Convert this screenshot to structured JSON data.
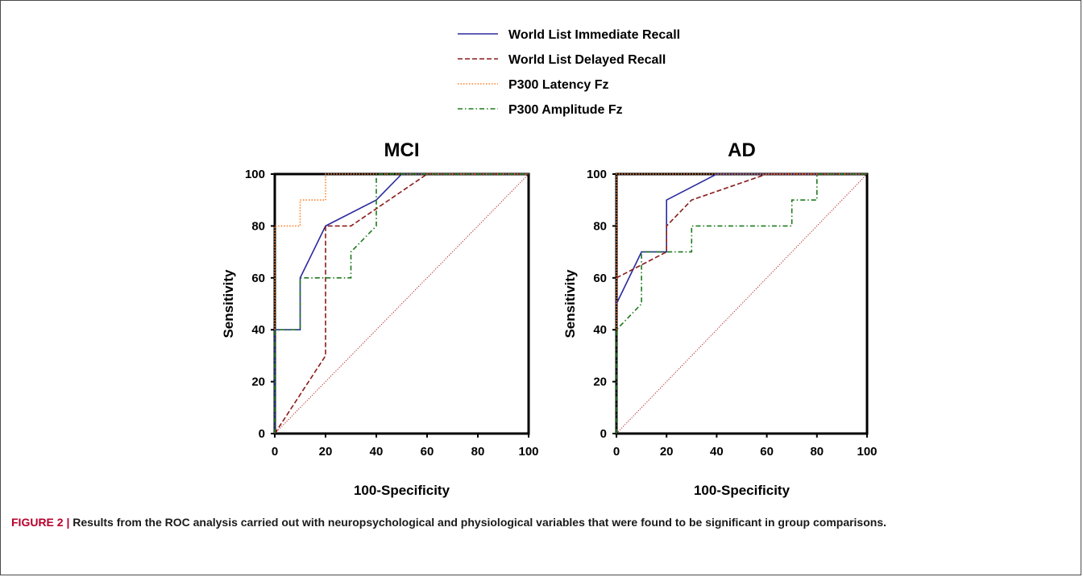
{
  "caption": {
    "label": "FIGURE 2 |",
    "text": "Results from the ROC analysis carried out with neuropsychological and physiological variables that were found to be significant in group comparisons."
  },
  "legend": [
    {
      "name": "World List Immediate Recall",
      "color": "#2a2a9e",
      "dash": "solid"
    },
    {
      "name": "World List Delayed Recall",
      "color": "#8b1a1a",
      "dash": "dashed"
    },
    {
      "name": "P300 Latency Fz",
      "color": "#ff7f27",
      "dash": "dotted"
    },
    {
      "name": "P300 Amplitude Fz",
      "color": "#1e7a1e",
      "dash": "dash-dot"
    }
  ],
  "chart_data": [
    {
      "type": "line",
      "title": "MCI",
      "xlabel": "100-Specificity",
      "ylabel": "Sensitivity",
      "xlim": [
        0,
        100
      ],
      "ylim": [
        0,
        100
      ],
      "xticks": [
        "0",
        "20",
        "40",
        "60",
        "80",
        "100"
      ],
      "yticks": [
        "0",
        "20",
        "40",
        "60",
        "80",
        "100"
      ],
      "reference_line": {
        "x": [
          0,
          100
        ],
        "y": [
          0,
          100
        ],
        "color": "#b22222"
      },
      "series": [
        {
          "name": "World List Immediate Recall",
          "x": [
            0,
            0,
            10,
            10,
            20,
            40,
            50,
            100
          ],
          "y": [
            0,
            40,
            40,
            60,
            80,
            90,
            100,
            100
          ]
        },
        {
          "name": "World List Delayed Recall",
          "x": [
            0,
            20,
            20,
            30,
            60,
            100
          ],
          "y": [
            0,
            30,
            80,
            80,
            100,
            100
          ]
        },
        {
          "name": "P300 Latency Fz",
          "x": [
            0,
            0,
            10,
            10,
            20,
            20,
            100
          ],
          "y": [
            40,
            80,
            80,
            90,
            90,
            100,
            100
          ]
        },
        {
          "name": "P300 Amplitude Fz",
          "x": [
            0,
            0,
            10,
            10,
            30,
            30,
            40,
            40,
            100
          ],
          "y": [
            0,
            40,
            40,
            60,
            60,
            70,
            80,
            100,
            100
          ]
        }
      ]
    },
    {
      "type": "line",
      "title": "AD",
      "xlabel": "100-Specificity",
      "ylabel": "Sensitivity",
      "xlim": [
        0,
        100
      ],
      "ylim": [
        0,
        100
      ],
      "xticks": [
        "0",
        "20",
        "40",
        "60",
        "80",
        "100"
      ],
      "yticks": [
        "0",
        "20",
        "40",
        "60",
        "80",
        "100"
      ],
      "reference_line": {
        "x": [
          0,
          100
        ],
        "y": [
          0,
          100
        ],
        "color": "#b22222"
      },
      "series": [
        {
          "name": "World List Immediate Recall",
          "x": [
            0,
            10,
            20,
            20,
            40,
            100
          ],
          "y": [
            50,
            70,
            70,
            90,
            100,
            100
          ]
        },
        {
          "name": "World List Delayed Recall",
          "x": [
            0,
            20,
            20,
            30,
            60,
            100
          ],
          "y": [
            60,
            70,
            80,
            90,
            100,
            100
          ]
        },
        {
          "name": "P300 Latency Fz",
          "x": [
            0,
            0,
            100
          ],
          "y": [
            40,
            100,
            100
          ]
        },
        {
          "name": "P300 Amplitude Fz",
          "x": [
            0,
            0,
            10,
            10,
            30,
            30,
            70,
            70,
            80,
            80,
            100
          ],
          "y": [
            0,
            40,
            50,
            70,
            70,
            80,
            80,
            90,
            90,
            100,
            100
          ]
        }
      ]
    }
  ]
}
